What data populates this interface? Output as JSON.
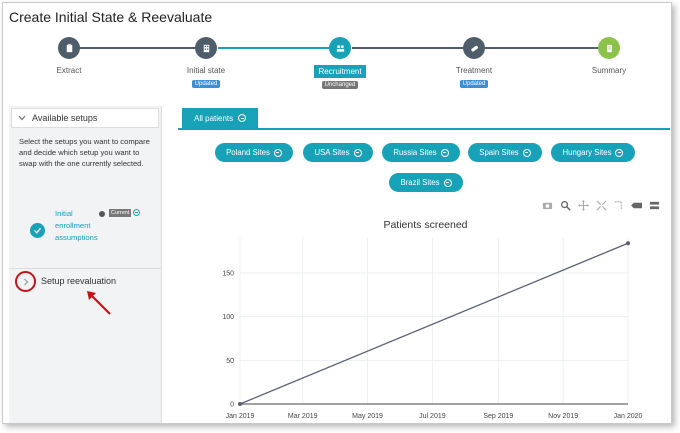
{
  "window": {
    "title": "Create Initial State & Reevaluate"
  },
  "stepper": {
    "steps": [
      {
        "label": "Extract",
        "badge": "",
        "icon": "clipboard-icon",
        "color": "#4f5d6b",
        "active": false
      },
      {
        "label": "Initial state",
        "badge": "Updated",
        "icon": "building-icon",
        "color": "#4f5d6b",
        "active": false
      },
      {
        "label": "Recruitment",
        "badge": "Unchanged",
        "icon": "people-icon",
        "color": "#17a2b8",
        "active": true
      },
      {
        "label": "Treatment",
        "badge": "Updated",
        "icon": "pill-icon",
        "color": "#4f5d6b",
        "active": false
      },
      {
        "label": "Summary",
        "badge": "",
        "icon": "summary-icon",
        "color": "#8bc34a",
        "active": false
      }
    ],
    "colors": {
      "done_line": "#4f5d6b",
      "active_line": "#17a2b8",
      "updated_badge": "#3b8fd6",
      "unchanged_badge": "#777777"
    }
  },
  "sidebar": {
    "header": "Available setups",
    "description": "Select the setups you want to compare and decide which setup you want to swap with the one currently selected.",
    "setup": {
      "name": "Initial enrollment assumptions",
      "current_badge": "Current"
    },
    "reevaluation": "Setup reevaluation"
  },
  "main": {
    "tab": "All patients",
    "filters": [
      "Poland Sites",
      "USA Sites",
      "Russia Sites",
      "Spain Sites",
      "Hungary Sites",
      "Brazil Sites"
    ],
    "toolbar_icons": [
      "camera-icon",
      "zoom-icon",
      "pan-icon",
      "autoscale-icon",
      "spike-lines-icon",
      "hover-closest-icon",
      "hover-compare-icon"
    ]
  },
  "chart_data": {
    "type": "line",
    "title": "Patients screened",
    "xlabel": "",
    "ylabel": "",
    "x_ticks": [
      "Jan 2019",
      "Mar 2019",
      "May 2019",
      "Jul 2019",
      "Sep 2019",
      "Nov 2019",
      "Jan 2020"
    ],
    "y_ticks": [
      0,
      50,
      100,
      150
    ],
    "ylim": [
      0,
      190
    ],
    "grid": true,
    "series": [
      {
        "x": [
          "2019-01-01",
          "2020-01-01"
        ],
        "y": [
          0,
          184
        ],
        "color": "#5a5f73"
      }
    ]
  }
}
